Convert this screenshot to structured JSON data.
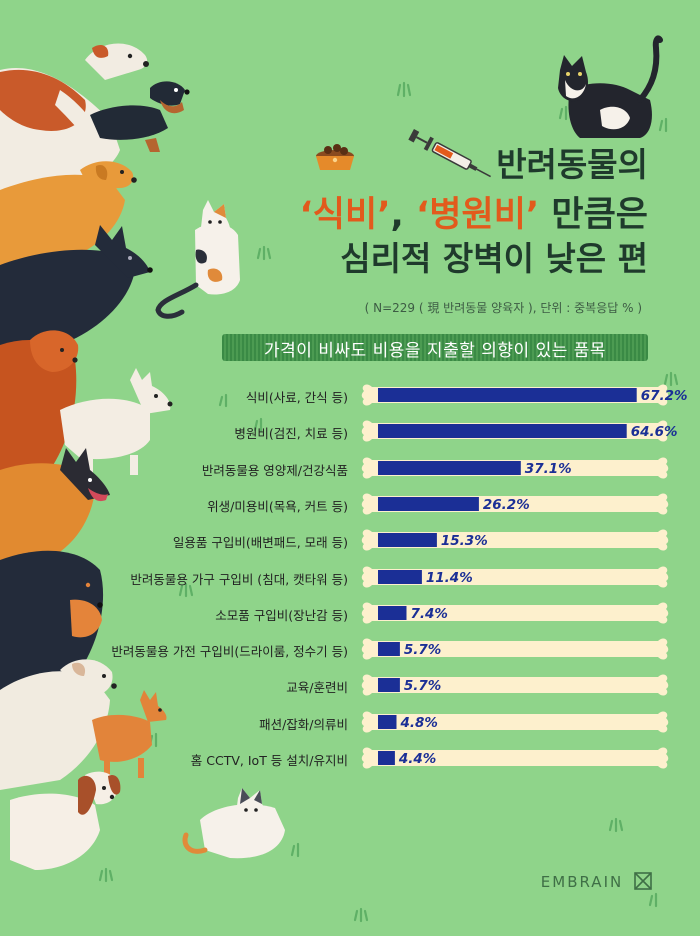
{
  "title": {
    "line1": "반려동물의",
    "line2_h1": "‘식비’",
    "line2_sep": ", ",
    "line2_h2": "‘병원비’",
    "line2_end": " 만큼은",
    "line3": "심리적 장벽이 낮은 편"
  },
  "note": "( N=229 ( 現 반려동물 양육자 ), 단위 : 중복응답 % )",
  "brand": "EMBRAIN",
  "colors": {
    "background": "#8fd48a",
    "bar": "#1b2f96",
    "bone": "#fdf0cd",
    "value": "#1b2f96",
    "highlight": "#e25a1c"
  },
  "chart_data": {
    "type": "bar",
    "orientation": "horizontal",
    "title": "가격이 비싸도 비용을 지출할 의향이 있는 품목",
    "unit": "%",
    "categories": [
      "식비(사료, 간식 등)",
      "병원비(검진, 치료 등)",
      "반려동물용 영양제/건강식품",
      "위생/미용비(목욕, 커트 등)",
      "일용품 구입비(배변패드, 모래 등)",
      "반려동물용 가구 구입비 (침대, 캣타워 등)",
      "소모품 구입비(장난감 등)",
      "반려동물용 가전 구입비(드라이룸, 정수기 등)",
      "교육/훈련비",
      "패션/잡화/의류비",
      "홈 CCTV, IoT 등 설치/유지비"
    ],
    "values": [
      67.2,
      64.6,
      37.1,
      26.2,
      15.3,
      11.4,
      7.4,
      5.7,
      5.7,
      4.8,
      4.4
    ],
    "value_labels": [
      "67.2%",
      "64.6%",
      "37.1%",
      "26.2%",
      "15.3%",
      "11.4%",
      "7.4%",
      "5.7%",
      "5.7%",
      "4.8%",
      "4.4%"
    ],
    "xlim": [
      0,
      100
    ]
  }
}
